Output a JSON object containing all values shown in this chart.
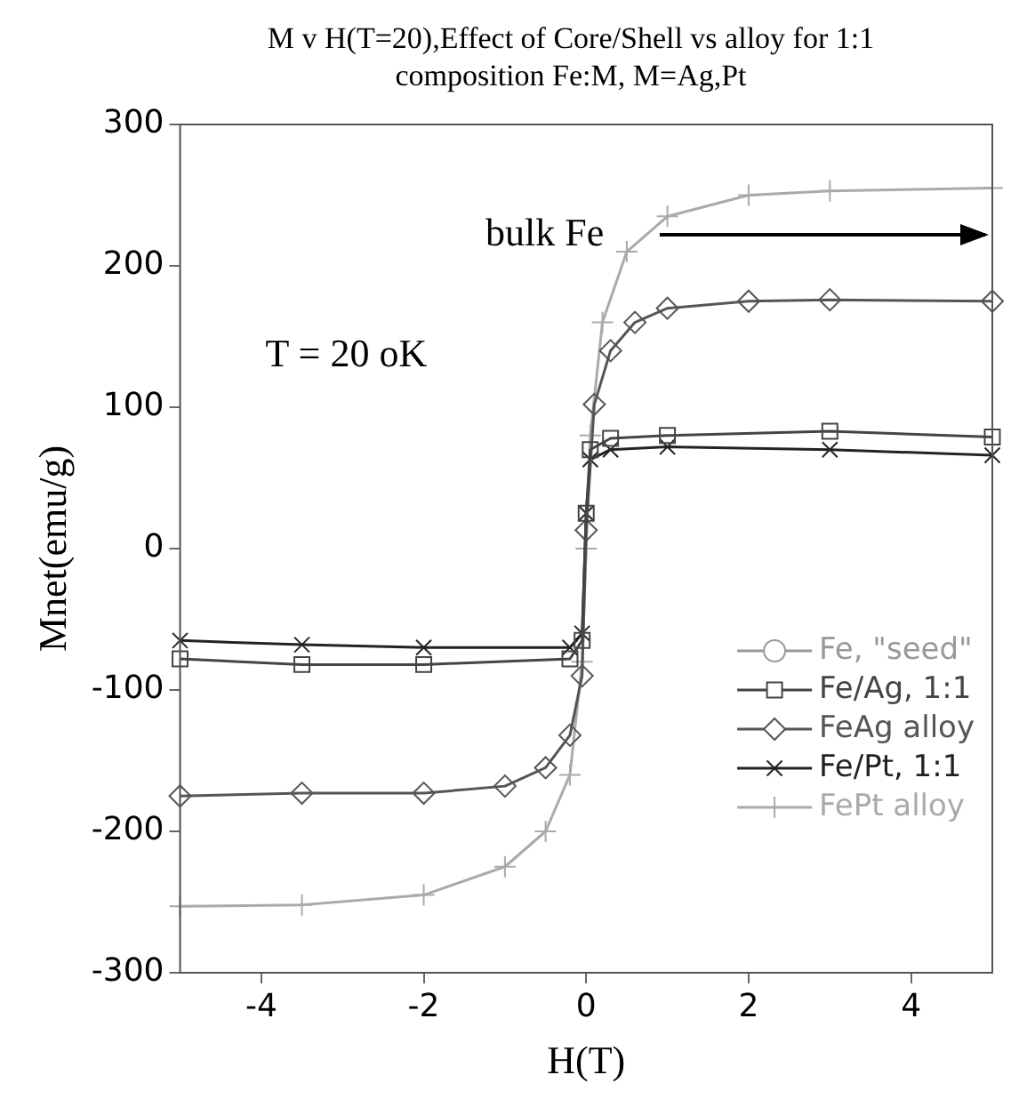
{
  "chart_data": {
    "type": "line",
    "title": "M v H(T=20),Effect of Core/Shell vs alloy for 1:1 composition Fe:M, M=Ag,Pt",
    "xlabel": "H(T)",
    "ylabel": "Mnet(emu/g)",
    "xlim": [
      -5,
      5
    ],
    "xticks": [
      -4,
      -2,
      0,
      2,
      4
    ],
    "ylim": [
      -300,
      300
    ],
    "yticks": [
      -300,
      -200,
      -100,
      0,
      100,
      200,
      300
    ],
    "grid": false,
    "legend": "bottom right",
    "annotations": [
      "bulk Fe",
      "T = 20 oK"
    ],
    "series": [
      {
        "name": "Fe, \"seed\"",
        "color": "#999999",
        "marker": "circle"
      },
      {
        "name": "Fe/Ag, 1:1",
        "color": "#444444",
        "marker": "square",
        "x": [
          -5,
          -3.5,
          -2,
          -0.2,
          -0.05,
          0,
          0.05,
          0.3,
          1,
          3,
          5
        ],
        "values": [
          -78,
          -82,
          -82,
          -78,
          -65,
          25,
          70,
          78,
          80,
          83,
          79
        ]
      },
      {
        "name": "FeAg alloy",
        "color": "#555555",
        "marker": "diamond",
        "x": [
          -5,
          -3.5,
          -2,
          -1,
          -0.5,
          -0.2,
          -0.05,
          0,
          0.1,
          0.3,
          0.6,
          1,
          2,
          3,
          5
        ],
        "values": [
          -175,
          -173,
          -173,
          -168,
          -155,
          -132,
          -90,
          13,
          102,
          140,
          160,
          170,
          175,
          176,
          175
        ]
      },
      {
        "name": "Fe/Pt, 1:1",
        "color": "#222222",
        "marker": "cross",
        "x": [
          -5,
          -3.5,
          -2,
          -0.2,
          -0.05,
          0,
          0.05,
          0.3,
          1,
          3,
          5
        ],
        "values": [
          -65,
          -68,
          -70,
          -70,
          -60,
          25,
          63,
          70,
          72,
          70,
          66
        ]
      },
      {
        "name": "FePt alloy",
        "color": "#aaaaaa",
        "marker": "plus",
        "x": [
          -5,
          -3.5,
          -2,
          -1,
          -0.5,
          -0.2,
          -0.05,
          0,
          0.05,
          0.2,
          0.5,
          1,
          2,
          3,
          5
        ],
        "values": [
          -253,
          -252,
          -245,
          -225,
          -200,
          -160,
          -80,
          0,
          80,
          160,
          210,
          235,
          250,
          253,
          255
        ]
      }
    ]
  }
}
